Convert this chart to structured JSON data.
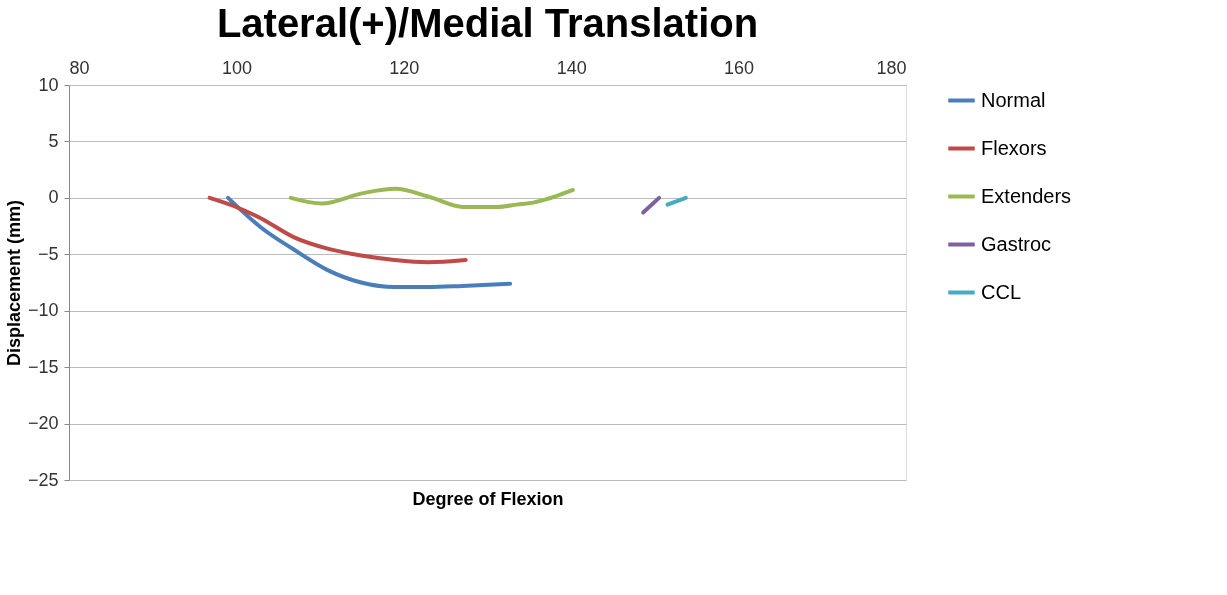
{
  "chart_data": {
    "type": "line",
    "title": "Lateral(+)/Medial Translation",
    "xlabel": "Degree of Flexion",
    "ylabel": "Displacement (mm)",
    "xlim": [
      80,
      180
    ],
    "xticks": [
      80,
      100,
      120,
      140,
      160,
      180
    ],
    "ylim": [
      -25,
      10
    ],
    "yticks": [
      -25,
      -20,
      -15,
      -10,
      -5,
      0,
      5,
      10
    ],
    "grid": "y",
    "legend": "right",
    "marker": "none",
    "line_style": "solid",
    "series": [
      {
        "name": "Normal",
        "color": "#4a7ebb",
        "x": [
          99,
          102.9,
          106.9,
          110.9,
          114.9,
          118.9,
          122.9,
          127,
          132.7
        ],
        "values": [
          0,
          -2.6,
          -4.6,
          -6.4,
          -7.5,
          -7.9,
          -7.9,
          -7.8,
          -7.6
        ]
      },
      {
        "name": "Flexors",
        "color": "#be4b48",
        "x": [
          96.8,
          99.6,
          102.9,
          106.9,
          110.9,
          114.9,
          118.9,
          122.9,
          127.4
        ],
        "values": [
          0,
          -0.7,
          -1.8,
          -3.5,
          -4.5,
          -5.1,
          -5.5,
          -5.7,
          -5.5
        ]
      },
      {
        "name": "Extenders",
        "color": "#98b954",
        "x": [
          106.5,
          110.2,
          115,
          119,
          123,
          127.1,
          131.2,
          133.5,
          135.6,
          140.2
        ],
        "values": [
          0,
          -0.5,
          0.4,
          0.8,
          0.1,
          -0.8,
          -0.8,
          -0.6,
          -0.4,
          0.7
        ]
      },
      {
        "name": "Gastroc",
        "color": "#7d60a0",
        "x": [
          148.6,
          150.5
        ],
        "values": [
          -1.3,
          0
        ]
      },
      {
        "name": "CCL",
        "color": "#46aac5",
        "x": [
          151.5,
          153.7
        ],
        "values": [
          -0.6,
          0
        ]
      }
    ]
  }
}
